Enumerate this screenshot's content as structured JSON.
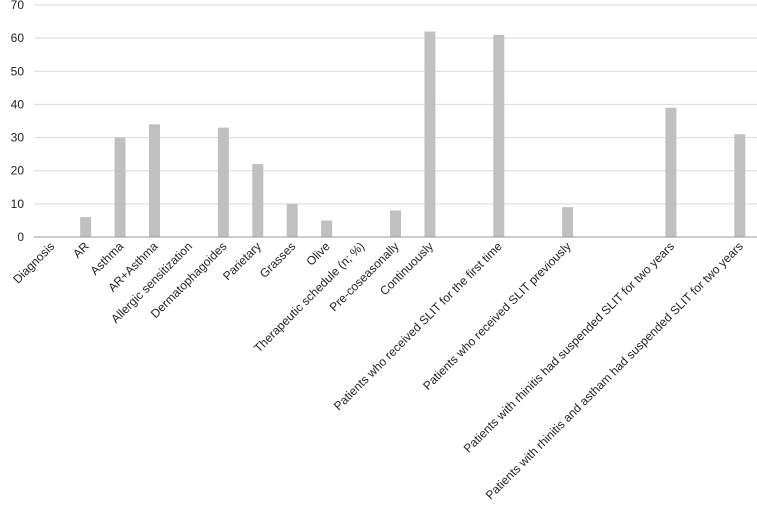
{
  "chart_data": {
    "type": "bar",
    "title": "",
    "xlabel": "",
    "ylabel": "",
    "ylim": [
      0,
      70
    ],
    "yticks": [
      0,
      10,
      20,
      30,
      40,
      50,
      60,
      70
    ],
    "grid": true,
    "legend": "none",
    "bar_color": "#c0c0c0",
    "grid_color": "#d9d9d9",
    "axis_color": "#999999",
    "categories": [
      "Diagnosis",
      "AR",
      "Asthma",
      "AR+Asthma",
      "Allergic sensitization",
      "Dermatophagoides",
      "Parietary",
      "Grasses",
      "Olive",
      "Therapeutic schedule (n; %)",
      "Pre-coseasonally",
      "Continuously",
      "",
      "Patients who received SLIT for the first time",
      "",
      "Patients who received SLIT previously",
      "",
      "",
      "Patients with rhinitis had suspended SLIT for two years",
      "",
      "Patients with rhinitis and astham had suspended SLIT for two years"
    ],
    "values": [
      null,
      6,
      30,
      34,
      null,
      33,
      22,
      10,
      5,
      null,
      8,
      62,
      null,
      61,
      null,
      9,
      null,
      null,
      39,
      null,
      31
    ]
  }
}
